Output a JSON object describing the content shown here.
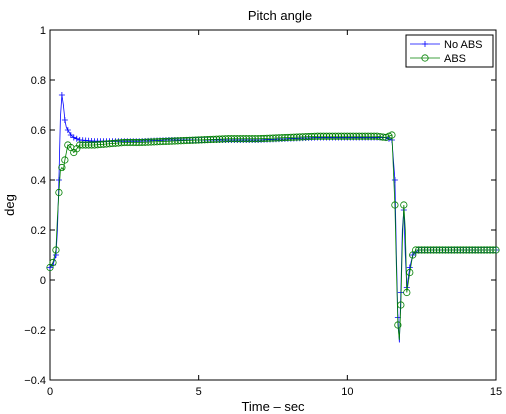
{
  "chart_data": {
    "type": "line",
    "title": "Pitch angle",
    "xlabel": "Time – sec",
    "ylabel": "deg",
    "xlim": [
      0,
      15
    ],
    "ylim": [
      -0.4,
      1
    ],
    "grid": false,
    "legend_position": "top-right",
    "xticks": [
      0,
      5,
      10,
      15
    ],
    "yticks": [
      -0.4,
      -0.2,
      0,
      0.2,
      0.4,
      0.6,
      0.8,
      1
    ],
    "xtick_labels": [
      "0",
      "5",
      "10",
      "15"
    ],
    "ytick_labels": [
      "−0.4",
      "−0.2",
      "0",
      "0.2",
      "0.4",
      "0.6",
      "0.8",
      "1"
    ],
    "series": [
      {
        "name": "No ABS",
        "color": "#0000ff",
        "marker": "plus",
        "x": [
          0,
          0.1,
          0.2,
          0.25,
          0.3,
          0.35,
          0.4,
          0.45,
          0.5,
          0.55,
          0.6,
          0.7,
          0.8,
          1.0,
          1.5,
          2,
          3,
          4,
          5,
          6,
          7,
          8,
          9,
          10,
          11,
          11.3,
          11.5,
          11.6,
          11.65,
          11.7,
          11.75,
          11.8,
          11.85,
          11.9,
          11.95,
          12.0,
          12.1,
          12.2,
          12.3,
          12.4,
          12.5,
          13,
          14,
          15
        ],
        "y": [
          0.05,
          0.06,
          0.1,
          0.2,
          0.4,
          0.65,
          0.74,
          0.7,
          0.64,
          0.61,
          0.6,
          0.58,
          0.57,
          0.56,
          0.555,
          0.555,
          0.555,
          0.56,
          0.56,
          0.56,
          0.56,
          0.565,
          0.57,
          0.57,
          0.57,
          0.57,
          0.56,
          0.4,
          0.1,
          -0.15,
          -0.25,
          -0.05,
          0.2,
          0.28,
          0.1,
          -0.03,
          0.05,
          0.1,
          0.11,
          0.12,
          0.12,
          0.12,
          0.12,
          0.12
        ]
      },
      {
        "name": "ABS",
        "color": "#008000",
        "marker": "circle",
        "x": [
          0,
          0.1,
          0.2,
          0.25,
          0.3,
          0.35,
          0.4,
          0.45,
          0.5,
          0.6,
          0.7,
          0.8,
          1.0,
          1.5,
          2,
          2.5,
          3,
          4,
          5,
          6,
          7,
          8,
          9,
          10,
          11,
          11.3,
          11.5,
          11.6,
          11.65,
          11.7,
          11.75,
          11.8,
          11.85,
          11.9,
          11.95,
          12.0,
          12.1,
          12.2,
          12.3,
          12.4,
          12.5,
          13,
          14,
          15
        ],
        "y": [
          0.05,
          0.07,
          0.12,
          0.25,
          0.35,
          0.44,
          0.45,
          0.44,
          0.48,
          0.54,
          0.53,
          0.51,
          0.54,
          0.54,
          0.545,
          0.55,
          0.55,
          0.555,
          0.56,
          0.565,
          0.565,
          0.57,
          0.575,
          0.575,
          0.575,
          0.57,
          0.58,
          0.3,
          0.05,
          -0.18,
          -0.24,
          -0.1,
          0.15,
          0.3,
          0.2,
          -0.05,
          0.03,
          0.1,
          0.12,
          0.12,
          0.12,
          0.12,
          0.12,
          0.12
        ]
      }
    ]
  }
}
